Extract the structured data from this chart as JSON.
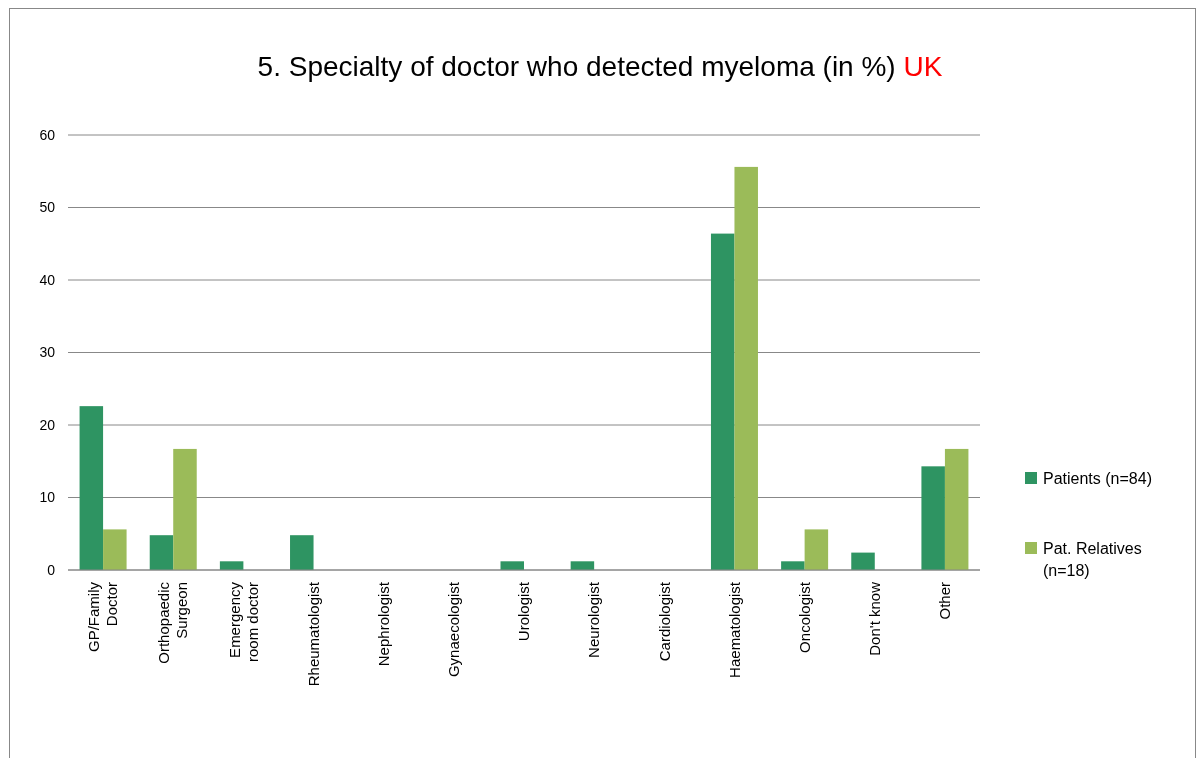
{
  "chart_data": {
    "type": "bar",
    "title": "5. Specialty of doctor who detected myeloma (in %) UK",
    "categories": [
      "GP/Family Doctor",
      "Orthopaedic Surgeon",
      "Emergency room doctor",
      "Rheumatologist",
      "Nephrologist",
      "Gynaecologist",
      "Urologist",
      "Neurologist",
      "Cardiologist",
      "Haematologist",
      "Oncologist",
      "Don't know",
      "Other"
    ],
    "series": [
      {
        "name": "Patients (n=84)",
        "color": "#2e9462",
        "values": [
          22.6,
          4.8,
          1.2,
          4.8,
          0,
          0,
          1.2,
          1.2,
          0,
          46.4,
          1.2,
          2.4,
          14.3
        ]
      },
      {
        "name": "Pat. Relatives (n=18)",
        "color": "#9bbb59",
        "values": [
          5.6,
          16.7,
          0,
          0,
          0,
          0,
          0,
          0,
          0,
          55.6,
          5.6,
          0,
          16.7
        ]
      }
    ],
    "ylim": [
      0,
      60
    ],
    "yticks": [
      0,
      10,
      20,
      30,
      40,
      50,
      60
    ],
    "grid": "y",
    "legend": "right"
  }
}
